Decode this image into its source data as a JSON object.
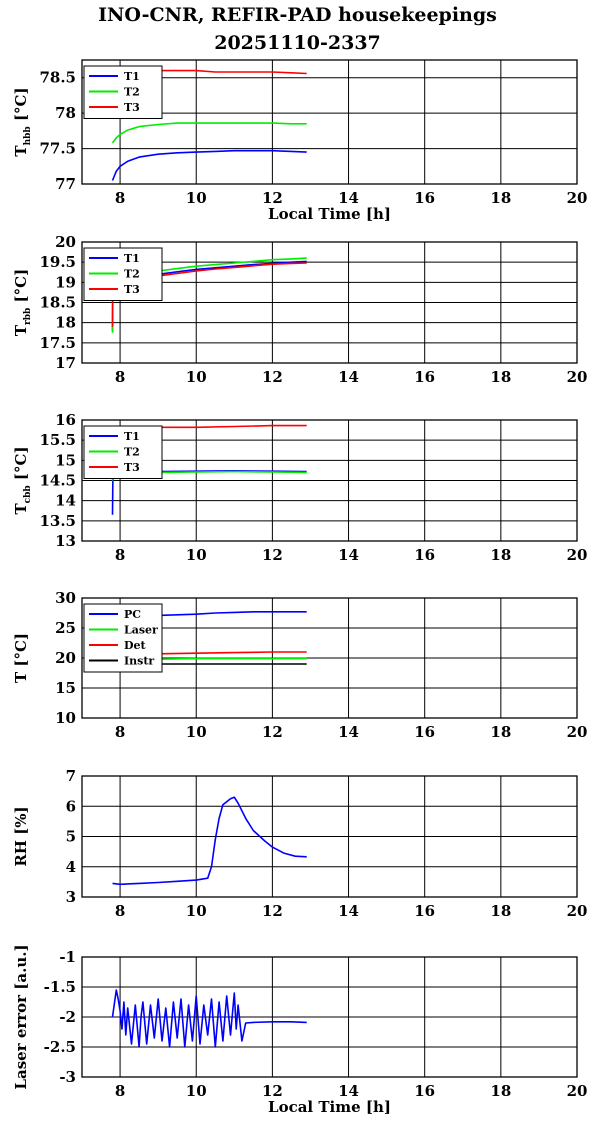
{
  "header": {
    "title_line1": "INO-CNR, REFIR-PAD housekeepings",
    "title_line2": "20251110-2337"
  },
  "chart_data": [
    {
      "type": "line",
      "ylabel_main": "T",
      "ylabel_sub": "hbb",
      "ylabel_unit": " [°C]",
      "xlabel": "Local Time [h]",
      "xlim": [
        7,
        20
      ],
      "ylim": [
        77,
        78.75
      ],
      "xticks": [
        8,
        10,
        12,
        14,
        16,
        18,
        20
      ],
      "yticks": [
        77,
        77.5,
        78,
        78.5
      ],
      "legend": "top-left",
      "series": [
        {
          "name": "T1",
          "color": "#0000ff",
          "x": [
            7.8,
            7.9,
            8.0,
            8.2,
            8.5,
            9.0,
            9.5,
            10.0,
            10.5,
            11.0,
            11.5,
            12.0,
            12.5,
            12.9
          ],
          "y": [
            77.05,
            77.18,
            77.25,
            77.32,
            77.38,
            77.42,
            77.44,
            77.45,
            77.46,
            77.47,
            77.47,
            77.47,
            77.46,
            77.45
          ]
        },
        {
          "name": "T2",
          "color": "#00ee00",
          "x": [
            7.8,
            7.9,
            8.0,
            8.2,
            8.5,
            9.0,
            9.5,
            10.0,
            10.5,
            11.0,
            11.5,
            12.0,
            12.5,
            12.9
          ],
          "y": [
            77.58,
            77.65,
            77.7,
            77.76,
            77.81,
            77.84,
            77.86,
            77.86,
            77.86,
            77.86,
            77.86,
            77.86,
            77.85,
            77.85
          ]
        },
        {
          "name": "T3",
          "color": "#ff0000",
          "x": [
            7.8,
            8.5,
            9.0,
            9.5,
            10.0,
            10.5,
            11.0,
            11.5,
            12.0,
            12.5,
            12.9
          ],
          "y": [
            78.6,
            78.6,
            78.6,
            78.6,
            78.6,
            78.58,
            78.58,
            78.58,
            78.58,
            78.57,
            78.56
          ]
        }
      ]
    },
    {
      "type": "line",
      "ylabel_main": "T",
      "ylabel_sub": "rbb",
      "ylabel_unit": " [°C]",
      "xlabel": "",
      "xlim": [
        7,
        20
      ],
      "ylim": [
        17,
        20
      ],
      "xticks": [
        8,
        10,
        12,
        14,
        16,
        18,
        20
      ],
      "yticks": [
        17,
        17.5,
        18,
        18.5,
        19,
        19.5,
        20
      ],
      "legend": "top-left",
      "series": [
        {
          "name": "T1",
          "color": "#0000ff",
          "x": [
            7.8,
            7.81,
            7.82,
            8.0,
            8.5,
            9.0,
            9.5,
            10.0,
            10.5,
            11.0,
            11.5,
            12.0,
            12.5,
            12.9
          ],
          "y": [
            17.8,
            18.95,
            19.0,
            19.05,
            19.12,
            19.2,
            19.26,
            19.32,
            19.36,
            19.4,
            19.44,
            19.47,
            19.5,
            19.52
          ]
        },
        {
          "name": "T2",
          "color": "#00ee00",
          "x": [
            7.8,
            7.81,
            7.82,
            8.0,
            8.5,
            9.0,
            9.5,
            10.0,
            10.5,
            11.0,
            11.5,
            12.0,
            12.5,
            12.9
          ],
          "y": [
            17.75,
            19.0,
            19.05,
            19.12,
            19.2,
            19.28,
            19.34,
            19.4,
            19.44,
            19.48,
            19.52,
            19.56,
            19.58,
            19.6
          ]
        },
        {
          "name": "T3",
          "color": "#ff0000",
          "x": [
            7.8,
            7.81,
            7.82,
            8.0,
            8.5,
            9.0,
            9.5,
            10.0,
            10.5,
            11.0,
            11.5,
            12.0,
            12.5,
            12.9
          ],
          "y": [
            17.9,
            18.9,
            18.95,
            19.0,
            19.08,
            19.16,
            19.22,
            19.28,
            19.33,
            19.37,
            19.41,
            19.45,
            19.47,
            19.48
          ]
        }
      ]
    },
    {
      "type": "line",
      "ylabel_main": "T",
      "ylabel_sub": "cbb",
      "ylabel_unit": " [°C]",
      "xlabel": "",
      "xlim": [
        7,
        20
      ],
      "ylim": [
        13,
        16
      ],
      "xticks": [
        8,
        10,
        12,
        14,
        16,
        18,
        20
      ],
      "yticks": [
        13,
        13.5,
        14,
        14.5,
        15,
        15.5,
        16
      ],
      "legend": "top-left",
      "series": [
        {
          "name": "T1",
          "color": "#0000ff",
          "x": [
            7.8,
            7.81,
            7.82,
            8.0,
            8.5,
            9.0,
            10.0,
            11.0,
            12.0,
            12.9
          ],
          "y": [
            13.65,
            14.4,
            14.7,
            14.74,
            14.73,
            14.72,
            14.73,
            14.74,
            14.73,
            14.72
          ]
        },
        {
          "name": "T2",
          "color": "#00ee00",
          "x": [
            7.8,
            7.81,
            7.82,
            8.0,
            8.5,
            9.0,
            10.0,
            11.0,
            12.0,
            12.9
          ],
          "y": [
            14.5,
            14.65,
            14.72,
            14.72,
            14.7,
            14.7,
            14.71,
            14.72,
            14.71,
            14.7
          ]
        },
        {
          "name": "T3",
          "color": "#ff0000",
          "x": [
            7.8,
            8.5,
            9.0,
            10.0,
            11.0,
            12.0,
            12.5,
            12.9
          ],
          "y": [
            15.82,
            15.82,
            15.82,
            15.82,
            15.84,
            15.86,
            15.86,
            15.86
          ]
        }
      ]
    },
    {
      "type": "line",
      "ylabel_main": "T [°C]",
      "ylabel_sub": "",
      "ylabel_unit": "",
      "xlabel": "",
      "xlim": [
        7,
        20
      ],
      "ylim": [
        10,
        30
      ],
      "xticks": [
        8,
        10,
        12,
        14,
        16,
        18,
        20
      ],
      "yticks": [
        10,
        15,
        20,
        25,
        30
      ],
      "legend": "top-left",
      "series": [
        {
          "name": "PC",
          "color": "#0000ff",
          "x": [
            7.8,
            8.5,
            9.0,
            9.5,
            10.0,
            10.5,
            11.0,
            11.5,
            12.0,
            12.5,
            12.9
          ],
          "y": [
            26.8,
            27.0,
            27.1,
            27.2,
            27.3,
            27.5,
            27.6,
            27.7,
            27.7,
            27.7,
            27.7
          ]
        },
        {
          "name": "Laser",
          "color": "#00ee00",
          "x": [
            7.8,
            8.5,
            9.0,
            10.0,
            11.0,
            12.0,
            12.9
          ],
          "y": [
            19.8,
            19.8,
            19.8,
            19.9,
            19.9,
            19.9,
            19.9
          ]
        },
        {
          "name": "Det",
          "color": "#ff0000",
          "x": [
            7.8,
            8.5,
            9.0,
            10.0,
            11.0,
            12.0,
            12.9
          ],
          "y": [
            20.5,
            20.6,
            20.7,
            20.8,
            20.9,
            21.0,
            21.0
          ]
        },
        {
          "name": "Instr",
          "color": "#000000",
          "x": [
            7.8,
            8.5,
            9.0,
            10.0,
            11.0,
            12.0,
            12.9
          ],
          "y": [
            19.0,
            19.0,
            19.0,
            19.0,
            19.0,
            19.0,
            19.0
          ]
        }
      ]
    },
    {
      "type": "line",
      "ylabel_main": "RH [%]",
      "ylabel_sub": "",
      "ylabel_unit": "",
      "xlabel": "",
      "xlim": [
        7,
        20
      ],
      "ylim": [
        3,
        7
      ],
      "xticks": [
        8,
        10,
        12,
        14,
        16,
        18,
        20
      ],
      "yticks": [
        3,
        4,
        5,
        6,
        7
      ],
      "legend": "",
      "series": [
        {
          "name": "",
          "color": "#0000ff",
          "x": [
            7.8,
            8.0,
            8.5,
            9.0,
            9.5,
            10.0,
            10.3,
            10.4,
            10.5,
            10.6,
            10.7,
            10.8,
            10.9,
            11.0,
            11.1,
            11.3,
            11.5,
            11.8,
            12.0,
            12.3,
            12.6,
            12.9
          ],
          "y": [
            3.45,
            3.42,
            3.45,
            3.48,
            3.52,
            3.56,
            3.62,
            4.0,
            4.9,
            5.6,
            6.05,
            6.15,
            6.25,
            6.3,
            6.1,
            5.6,
            5.2,
            4.85,
            4.65,
            4.45,
            4.35,
            4.33
          ]
        }
      ]
    },
    {
      "type": "line",
      "ylabel_main": "Laser error [a.u.]",
      "ylabel_sub": "",
      "ylabel_unit": "",
      "xlabel": "Local Time [h]",
      "xlim": [
        7,
        20
      ],
      "ylim": [
        -3,
        -1
      ],
      "xticks": [
        8,
        10,
        12,
        14,
        16,
        18,
        20
      ],
      "yticks": [
        -3,
        -2.5,
        -2,
        -1.5,
        -1
      ],
      "legend": "",
      "series": [
        {
          "name": "",
          "color": "#0000ff",
          "x": [
            7.8,
            7.9,
            7.95,
            8.0,
            8.05,
            8.1,
            8.15,
            8.2,
            8.3,
            8.4,
            8.5,
            8.55,
            8.6,
            8.7,
            8.8,
            8.9,
            9.0,
            9.1,
            9.2,
            9.3,
            9.4,
            9.5,
            9.6,
            9.7,
            9.8,
            9.9,
            10.0,
            10.1,
            10.2,
            10.3,
            10.4,
            10.5,
            10.6,
            10.7,
            10.8,
            10.9,
            11.0,
            11.05,
            11.1,
            11.2,
            11.3,
            11.5,
            12.0,
            12.5,
            12.9
          ],
          "y": [
            -2.0,
            -1.55,
            -1.7,
            -1.9,
            -2.2,
            -1.75,
            -2.3,
            -1.85,
            -2.45,
            -1.8,
            -2.5,
            -2.0,
            -1.75,
            -2.45,
            -1.8,
            -2.35,
            -1.7,
            -2.4,
            -1.85,
            -2.5,
            -1.75,
            -2.35,
            -1.7,
            -2.5,
            -1.8,
            -2.4,
            -1.65,
            -2.45,
            -1.8,
            -2.3,
            -1.7,
            -2.5,
            -1.75,
            -2.4,
            -1.65,
            -2.3,
            -1.6,
            -2.2,
            -1.8,
            -2.4,
            -2.1,
            -2.09,
            -2.08,
            -2.08,
            -2.09
          ]
        }
      ]
    }
  ]
}
